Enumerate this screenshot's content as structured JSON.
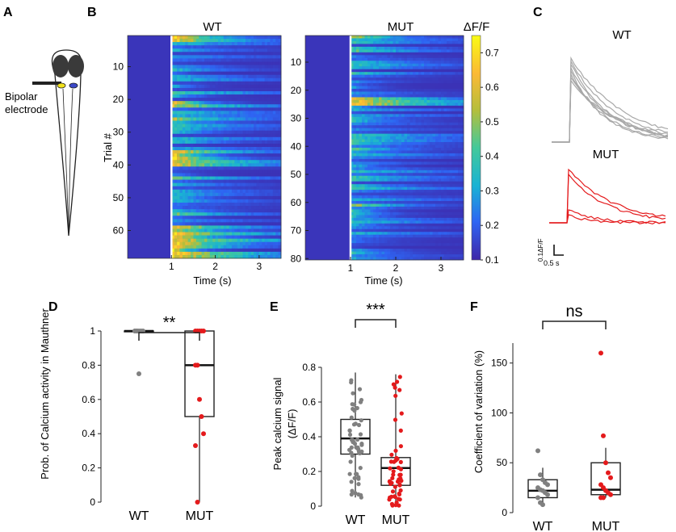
{
  "panels": {
    "a": "A",
    "b": "B",
    "c": "C",
    "d": "D",
    "e": "E",
    "f": "F"
  },
  "panel_a": {
    "electrode_label_line1": "Bipolar",
    "electrode_label_line2": "electrode",
    "cell_colors": [
      "#f2e21b",
      "#3b48c8"
    ]
  },
  "chart_data": [
    {
      "id": "B-WT",
      "type": "heatmap",
      "title": "WT",
      "xlabel": "Time (s)",
      "ylabel": "Trial #",
      "xticks": [
        "1",
        "2",
        "3"
      ],
      "yticks": [
        "10",
        "20",
        "30",
        "40",
        "50",
        "60"
      ],
      "xlim": [
        0,
        3.5
      ],
      "n_trials": 68,
      "stimulus_time": 1
    },
    {
      "id": "B-MUT",
      "type": "heatmap",
      "title": "MUT",
      "xlabel": "Time (s)",
      "ylabel": "",
      "xticks": [
        "1",
        "2",
        "3"
      ],
      "yticks": [
        "10",
        "20",
        "30",
        "40",
        "50",
        "60",
        "70",
        "80"
      ],
      "xlim": [
        0,
        3.5
      ],
      "n_trials": 80,
      "stimulus_time": 1,
      "colorbar_label": "ΔF/F",
      "colorbar_ticks": [
        "0.1",
        "0.2",
        "0.3",
        "0.4",
        "0.5",
        "0.6",
        "0.7"
      ],
      "colorbar_range": [
        0.1,
        0.75
      ],
      "colormap": [
        "#3e26a8",
        "#2e65f3",
        "#19b2d4",
        "#43c99a",
        "#b6be3b",
        "#fbb935",
        "#f9fb15"
      ]
    },
    {
      "id": "C",
      "type": "line",
      "series": [
        {
          "name": "WT",
          "color": "#a8a8a8"
        },
        {
          "name": "MUT",
          "color": "#e41a1c"
        }
      ],
      "scalebar_y": "0.1ΔF/F",
      "scalebar_x": "0.5 s"
    },
    {
      "id": "D",
      "type": "box",
      "ylabel": "Prob. of Calcium activity in Mauthner",
      "categories": [
        "WT",
        "MUT"
      ],
      "ylim": [
        0,
        1
      ],
      "yticks": [
        "0",
        "0.2",
        "0.4",
        "0.6",
        "0.8",
        "1"
      ],
      "significance": "**",
      "boxes": [
        {
          "name": "WT",
          "q1": 1,
          "median": 1,
          "q3": 1,
          "whisker_low": 1,
          "whisker_high": 1,
          "color": "#808080"
        },
        {
          "name": "MUT",
          "q1": 0.5,
          "median": 0.8,
          "q3": 1,
          "whisker_low": 0,
          "whisker_high": 1,
          "color": "#e41a1c"
        }
      ],
      "points": [
        {
          "name": "WT",
          "values": [
            1,
            1,
            1,
            1,
            1,
            1,
            1,
            0.75
          ]
        },
        {
          "name": "MUT",
          "values": [
            1,
            1,
            1,
            1,
            1,
            0.8,
            0.8,
            0.6,
            0.5,
            0.4,
            0.33,
            0
          ]
        }
      ]
    },
    {
      "id": "E",
      "type": "box",
      "ylabel": "Peak calcium signal",
      "ylabel2": "(ΔF/F)",
      "categories": [
        "WT",
        "MUT"
      ],
      "ylim": [
        0,
        0.8
      ],
      "yticks": [
        "0",
        "0.2",
        "0.4",
        "0.6",
        "0.8"
      ],
      "significance": "***",
      "boxes": [
        {
          "name": "WT",
          "q1": 0.3,
          "median": 0.39,
          "q3": 0.5,
          "whisker_low": 0.05,
          "whisker_high": 0.77,
          "color": "#808080"
        },
        {
          "name": "MUT",
          "q1": 0.12,
          "median": 0.22,
          "q3": 0.28,
          "whisker_low": 0,
          "whisker_high": 0.76,
          "color": "#e41a1c"
        }
      ]
    },
    {
      "id": "F",
      "type": "box",
      "ylabel": "Coefficient of variation (%)",
      "categories": [
        "WT",
        "MUT"
      ],
      "ylim": [
        0,
        170
      ],
      "yticks": [
        "0",
        "50",
        "100",
        "150"
      ],
      "significance": "ns",
      "boxes": [
        {
          "name": "WT",
          "q1": 15,
          "median": 22,
          "q3": 33,
          "whisker_low": 8,
          "whisker_high": 45,
          "color": "#808080"
        },
        {
          "name": "MUT",
          "q1": 18,
          "median": 23,
          "q3": 50,
          "whisker_low": 15,
          "whisker_high": 65,
          "color": "#e41a1c"
        }
      ],
      "points": [
        {
          "name": "WT",
          "values": [
            62,
            38,
            33,
            30,
            28,
            25,
            23,
            22,
            20,
            18,
            15,
            10,
            8
          ]
        },
        {
          "name": "MUT",
          "values": [
            160,
            77,
            50,
            40,
            35,
            28,
            25,
            22,
            20,
            18,
            15,
            15
          ]
        }
      ]
    }
  ]
}
